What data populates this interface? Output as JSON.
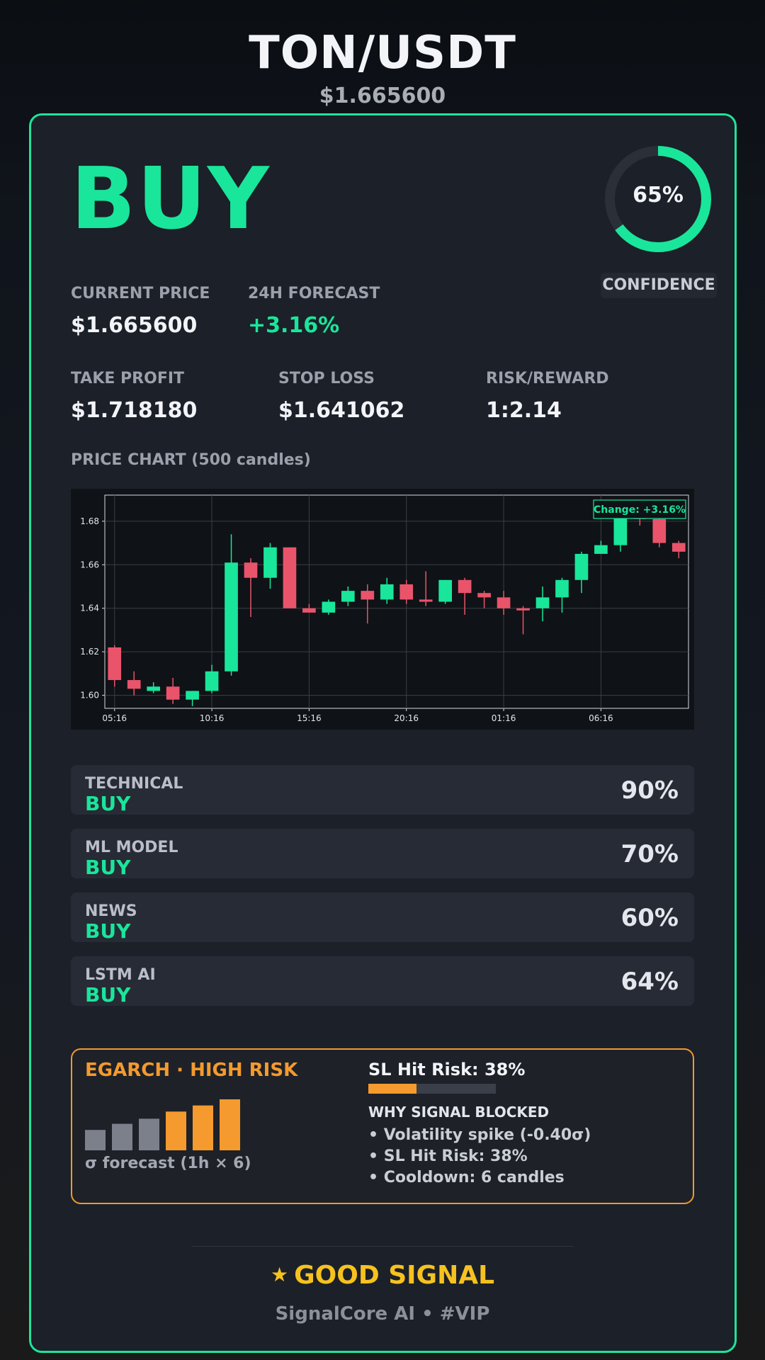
{
  "header": {
    "pair": "TON/USDT",
    "price": "$1.665600"
  },
  "signal": {
    "action": "BUY",
    "confidence_text": "65%",
    "confidence_fraction": 0.65,
    "confidence_label": "CONFIDENCE"
  },
  "stats": {
    "current_price_label": "CURRENT PRICE",
    "current_price": "$1.665600",
    "forecast_label": "24H FORECAST",
    "forecast": "+3.16%",
    "take_profit_label": "TAKE PROFIT",
    "take_profit": "$1.718180",
    "stop_loss_label": "STOP LOSS",
    "stop_loss": "$1.641062",
    "risk_reward_label": "RISK/REWARD",
    "risk_reward": "1:2.14"
  },
  "chart": {
    "section_label": "PRICE CHART (500 candles)"
  },
  "chart_data": {
    "type": "candlestick",
    "annotation": "Change: +3.16%",
    "ylim": [
      1.594,
      1.692
    ],
    "y_ticks": [
      "1.60",
      "1.62",
      "1.64",
      "1.66",
      "1.68"
    ],
    "x_ticks": [
      "05:16",
      "10:16",
      "15:16",
      "20:16",
      "01:16",
      "06:16"
    ],
    "grid": true,
    "colors": {
      "up": "#19e69a",
      "down": "#e9546b"
    },
    "candles": [
      {
        "o": 1.622,
        "h": 1.623,
        "l": 1.604,
        "c": 1.607
      },
      {
        "o": 1.607,
        "h": 1.611,
        "l": 1.6,
        "c": 1.603
      },
      {
        "o": 1.602,
        "h": 1.606,
        "l": 1.601,
        "c": 1.604
      },
      {
        "o": 1.604,
        "h": 1.608,
        "l": 1.596,
        "c": 1.598
      },
      {
        "o": 1.598,
        "h": 1.602,
        "l": 1.595,
        "c": 1.602
      },
      {
        "o": 1.602,
        "h": 1.614,
        "l": 1.601,
        "c": 1.611
      },
      {
        "o": 1.611,
        "h": 1.674,
        "l": 1.609,
        "c": 1.661
      },
      {
        "o": 1.661,
        "h": 1.663,
        "l": 1.636,
        "c": 1.654
      },
      {
        "o": 1.654,
        "h": 1.67,
        "l": 1.649,
        "c": 1.668
      },
      {
        "o": 1.668,
        "h": 1.668,
        "l": 1.64,
        "c": 1.64
      },
      {
        "o": 1.64,
        "h": 1.642,
        "l": 1.638,
        "c": 1.638
      },
      {
        "o": 1.638,
        "h": 1.644,
        "l": 1.637,
        "c": 1.643
      },
      {
        "o": 1.643,
        "h": 1.65,
        "l": 1.641,
        "c": 1.648
      },
      {
        "o": 1.648,
        "h": 1.651,
        "l": 1.633,
        "c": 1.644
      },
      {
        "o": 1.644,
        "h": 1.654,
        "l": 1.642,
        "c": 1.651
      },
      {
        "o": 1.651,
        "h": 1.653,
        "l": 1.642,
        "c": 1.644
      },
      {
        "o": 1.644,
        "h": 1.657,
        "l": 1.641,
        "c": 1.643
      },
      {
        "o": 1.643,
        "h": 1.653,
        "l": 1.642,
        "c": 1.653
      },
      {
        "o": 1.653,
        "h": 1.654,
        "l": 1.637,
        "c": 1.647
      },
      {
        "o": 1.647,
        "h": 1.648,
        "l": 1.64,
        "c": 1.645
      },
      {
        "o": 1.645,
        "h": 1.648,
        "l": 1.637,
        "c": 1.64
      },
      {
        "o": 1.64,
        "h": 1.641,
        "l": 1.628,
        "c": 1.639
      },
      {
        "o": 1.64,
        "h": 1.65,
        "l": 1.634,
        "c": 1.645
      },
      {
        "o": 1.645,
        "h": 1.654,
        "l": 1.638,
        "c": 1.653
      },
      {
        "o": 1.653,
        "h": 1.666,
        "l": 1.647,
        "c": 1.665
      },
      {
        "o": 1.665,
        "h": 1.671,
        "l": 1.665,
        "c": 1.669
      },
      {
        "o": 1.669,
        "h": 1.683,
        "l": 1.666,
        "c": 1.682
      },
      {
        "o": 1.682,
        "h": 1.684,
        "l": 1.678,
        "c": 1.681
      },
      {
        "o": 1.681,
        "h": 1.682,
        "l": 1.668,
        "c": 1.67
      },
      {
        "o": 1.67,
        "h": 1.671,
        "l": 1.663,
        "c": 1.666
      }
    ]
  },
  "sources": [
    {
      "name": "TECHNICAL",
      "signal": "BUY",
      "pct": "90%"
    },
    {
      "name": "ML MODEL",
      "signal": "BUY",
      "pct": "70%"
    },
    {
      "name": "NEWS",
      "signal": "BUY",
      "pct": "60%"
    },
    {
      "name": "LSTM AI",
      "signal": "BUY",
      "pct": "64%"
    }
  ],
  "risk": {
    "title": "EGARCH · HIGH RISK",
    "forecast_label": "σ forecast (1h × 6)",
    "sigma_levels": [
      0.4,
      0.52,
      0.62,
      0.76,
      0.88,
      1.0
    ],
    "sigma_colors": [
      "#7b808a",
      "#7b808a",
      "#7b808a",
      "#f49a2e",
      "#f49a2e",
      "#f49a2e"
    ],
    "sl_hit_title": "SL Hit Risk: 38%",
    "sl_hit_fraction": 0.38,
    "why_title": "WHY SIGNAL BLOCKED",
    "reasons": [
      "• Volatility spike (-0.40σ)",
      "• SL Hit Risk: 38%",
      "• Cooldown: 6 candles"
    ]
  },
  "footer": {
    "star_icon": "star-icon",
    "signal_text": "GOOD SIGNAL",
    "brand": "SignalCore AI • #VIP"
  }
}
